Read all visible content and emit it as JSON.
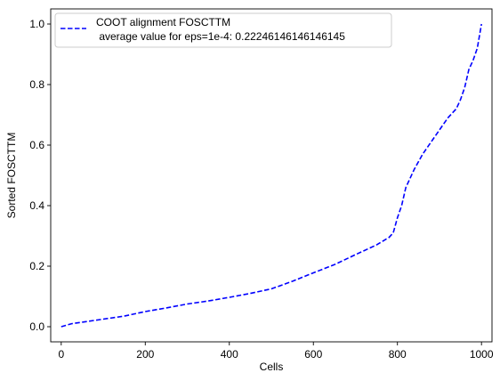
{
  "chart_data": {
    "type": "line",
    "xlabel": "Cells",
    "ylabel": "Sorted FOSCTTM",
    "xlim": [
      -25,
      1025
    ],
    "ylim": [
      -0.05,
      1.05
    ],
    "x_ticks": [
      0,
      200,
      400,
      600,
      800,
      1000
    ],
    "y_ticks": [
      0.0,
      0.2,
      0.4,
      0.6,
      0.8,
      1.0
    ],
    "x_tick_labels": [
      "0",
      "200",
      "400",
      "600",
      "800",
      "1000"
    ],
    "y_tick_labels": [
      "0.0",
      "0.2",
      "0.4",
      "0.6",
      "0.8",
      "1.0"
    ],
    "grid": false,
    "legend_position": "top-left",
    "series": [
      {
        "name": "COOT alignment FOSCTTM",
        "name_line2": " average value for eps=1e-4: 0.22246146146146145",
        "color": "#0000ff",
        "line_style": "dashed",
        "x": [
          0,
          25,
          50,
          100,
          150,
          200,
          250,
          300,
          350,
          400,
          450,
          500,
          550,
          600,
          650,
          700,
          750,
          780,
          790,
          800,
          810,
          820,
          840,
          860,
          880,
          900,
          920,
          940,
          950,
          960,
          970,
          980,
          990,
          995,
          1000
        ],
        "y": [
          0.0,
          0.01,
          0.015,
          0.025,
          0.035,
          0.05,
          0.062,
          0.075,
          0.085,
          0.097,
          0.11,
          0.125,
          0.15,
          0.178,
          0.205,
          0.238,
          0.27,
          0.295,
          0.31,
          0.36,
          0.4,
          0.46,
          0.52,
          0.57,
          0.61,
          0.65,
          0.69,
          0.72,
          0.75,
          0.79,
          0.85,
          0.88,
          0.92,
          0.96,
          1.0
        ]
      }
    ]
  }
}
